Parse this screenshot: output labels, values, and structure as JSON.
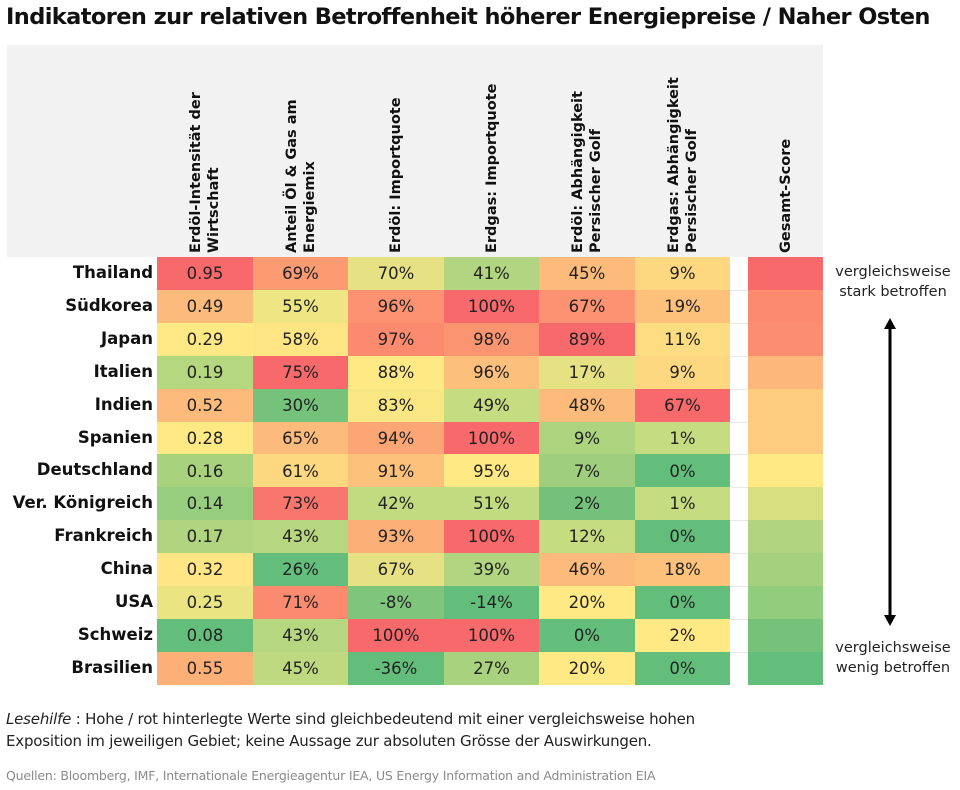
{
  "chart_data": {
    "type": "heatmap",
    "title": "Indikatoren zur relativen Betroffenheit höherer Energiepreise / Naher Osten",
    "columns": [
      {
        "label": "Erdöl-Intensität der Wirtschaft",
        "lines": [
          "Erdöl-Intensität der",
          "Wirtschaft"
        ]
      },
      {
        "label": "Anteil Öl & Gas am Energiemix",
        "lines": [
          "Anteil Öl & Gas am",
          "Energiemix"
        ]
      },
      {
        "label": "Erdöl: Importquote",
        "lines": [
          "Erdöl: Importquote"
        ]
      },
      {
        "label": "Erdgas: Importquote",
        "lines": [
          "Erdgas: Importquote"
        ]
      },
      {
        "label": "Erdöl: Abhängigkeit Persischer Golf",
        "lines": [
          "Erdöl: Abhängigkeit",
          "Persischer Golf"
        ]
      },
      {
        "label": "Erdgas: Abhängigkeit Persischer Golf",
        "lines": [
          "Erdgas: Abhängigkeit",
          "Persischer Golf"
        ]
      }
    ],
    "score_column": "Gesamt-Score",
    "rows": [
      "Thailand",
      "Südkorea",
      "Japan",
      "Italien",
      "Indien",
      "Spanien",
      "Deutschland",
      "Ver. Königreich",
      "Frankreich",
      "China",
      "USA",
      "Schweiz",
      "Brasilien"
    ],
    "values": [
      [
        "0.95",
        "69%",
        "70%",
        "41%",
        "45%",
        "9%"
      ],
      [
        "0.49",
        "55%",
        "96%",
        "100%",
        "67%",
        "19%"
      ],
      [
        "0.29",
        "58%",
        "97%",
        "98%",
        "89%",
        "11%"
      ],
      [
        "0.19",
        "75%",
        "88%",
        "96%",
        "17%",
        "9%"
      ],
      [
        "0.52",
        "30%",
        "83%",
        "49%",
        "48%",
        "67%"
      ],
      [
        "0.28",
        "65%",
        "94%",
        "100%",
        "9%",
        "1%"
      ],
      [
        "0.16",
        "61%",
        "91%",
        "95%",
        "7%",
        "0%"
      ],
      [
        "0.14",
        "73%",
        "42%",
        "51%",
        "2%",
        "1%"
      ],
      [
        "0.17",
        "43%",
        "93%",
        "100%",
        "12%",
        "0%"
      ],
      [
        "0.32",
        "26%",
        "67%",
        "39%",
        "46%",
        "18%"
      ],
      [
        "0.25",
        "71%",
        "-8%",
        "-14%",
        "20%",
        "0%"
      ],
      [
        "0.08",
        "43%",
        "100%",
        "100%",
        "0%",
        "2%"
      ],
      [
        "0.55",
        "45%",
        "-36%",
        "27%",
        "20%",
        "0%"
      ]
    ],
    "cell_colors": [
      [
        "#f8696b",
        "#fc9a72",
        "#e6e283",
        "#b1d580",
        "#fdbb7b",
        "#fed880"
      ],
      [
        "#fdbb7b",
        "#ede683",
        "#fc9272",
        "#f8696b",
        "#fc9272",
        "#fdc17c"
      ],
      [
        "#ffe984",
        "#fee583",
        "#fb8a6f",
        "#fb9571",
        "#f8696b",
        "#fedc81"
      ],
      [
        "#b5d77f",
        "#f8696b",
        "#ffe984",
        "#fdbf7c",
        "#e6e283",
        "#fed880"
      ],
      [
        "#fdbb7b",
        "#75c27b",
        "#f9e783",
        "#c5dc81",
        "#fdbb7b",
        "#f8696b"
      ],
      [
        "#ffe984",
        "#fdbb7b",
        "#fca575",
        "#f8696b",
        "#acd47f",
        "#c5dc81"
      ],
      [
        "#a9d27f",
        "#fed880",
        "#fdc17c",
        "#ffe984",
        "#9fcf7e",
        "#63be7b"
      ],
      [
        "#96cd7e",
        "#f9766e",
        "#c2db81",
        "#c2db81",
        "#73c17b",
        "#c5dc81"
      ],
      [
        "#b0d47f",
        "#b6d77f",
        "#fdaf78",
        "#f8696b",
        "#c5dc81",
        "#63be7b"
      ],
      [
        "#ffe584",
        "#63be7b",
        "#e6e283",
        "#b1d580",
        "#fdbb7b",
        "#fdc17c"
      ],
      [
        "#eae483",
        "#fb8a6f",
        "#80c57c",
        "#63be7b",
        "#ffe984",
        "#63be7b"
      ],
      [
        "#63be7b",
        "#b6d77f",
        "#f8696b",
        "#f8696b",
        "#63be7b",
        "#ffe984"
      ],
      [
        "#fdaf78",
        "#bfd980",
        "#63be7b",
        "#a9d27f",
        "#ffe984",
        "#63be7b"
      ]
    ],
    "score_colors": [
      "#f8696b",
      "#fb8a6f",
      "#fb8d70",
      "#fdb77a",
      "#fecc7f",
      "#fecc7f",
      "#ffe984",
      "#d8df81",
      "#b0d47f",
      "#a5d17e",
      "#92cc7d",
      "#76c27b",
      "#63be7b"
    ],
    "scale": {
      "high": "vergleichsweise stark betroffen",
      "low": "vergleichsweise wenig betroffen",
      "high_color": "#f8696b",
      "mid_color": "#ffe984",
      "low_color": "#63be7b"
    }
  },
  "annotations": {
    "top_label_lines": [
      "vergleichsweise",
      "stark betroffen"
    ],
    "bottom_label_lines": [
      "vergleichsweise",
      "wenig betroffen"
    ],
    "arrow": "double-vertical-arrow"
  },
  "footer": {
    "note_label": "Lesehilfe",
    "note_text_1": " : Hohe / rot hinterlegte Werte sind gleichbedeutend mit einer vergleichsweise hohen",
    "note_text_2": "Exposition im jeweiligen Gebiet; keine Aussage zur absoluten Grösse der Auswirkungen.",
    "sources": "Quellen: Bloomberg, IMF, Internationale Energieagentur IEA, US Energy Information and Administration EIA"
  }
}
